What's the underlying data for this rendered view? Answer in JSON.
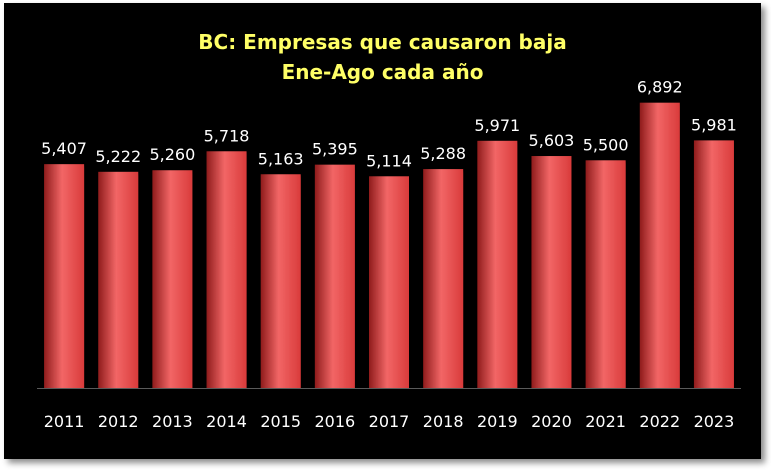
{
  "chart_data": {
    "type": "bar",
    "title": "BC: Empresas que causaron baja",
    "subtitle": "Ene-Ago cada año",
    "categories": [
      "2011",
      "2012",
      "2013",
      "2014",
      "2015",
      "2016",
      "2017",
      "2018",
      "2019",
      "2020",
      "2021",
      "2022",
      "2023"
    ],
    "values": [
      5407,
      5222,
      5260,
      5718,
      5163,
      5395,
      5114,
      5288,
      5971,
      5603,
      5500,
      6892,
      5981
    ],
    "value_labels": [
      "5,407",
      "5,222",
      "5,260",
      "5,718",
      "5,163",
      "5,395",
      "5,114",
      "5,288",
      "5,971",
      "5,603",
      "5,500",
      "6,892",
      "5,981"
    ],
    "xlabel": "",
    "ylabel": "",
    "ylim": [
      0,
      9300
    ],
    "grid": false,
    "legend": "none",
    "colors": {
      "background": "#000000",
      "bar": "#d93b3b",
      "bar_highlight": "#f26666",
      "bar_shadow": "#8f1c1c",
      "title": "#ffff66",
      "labels": "#ffffff"
    }
  }
}
